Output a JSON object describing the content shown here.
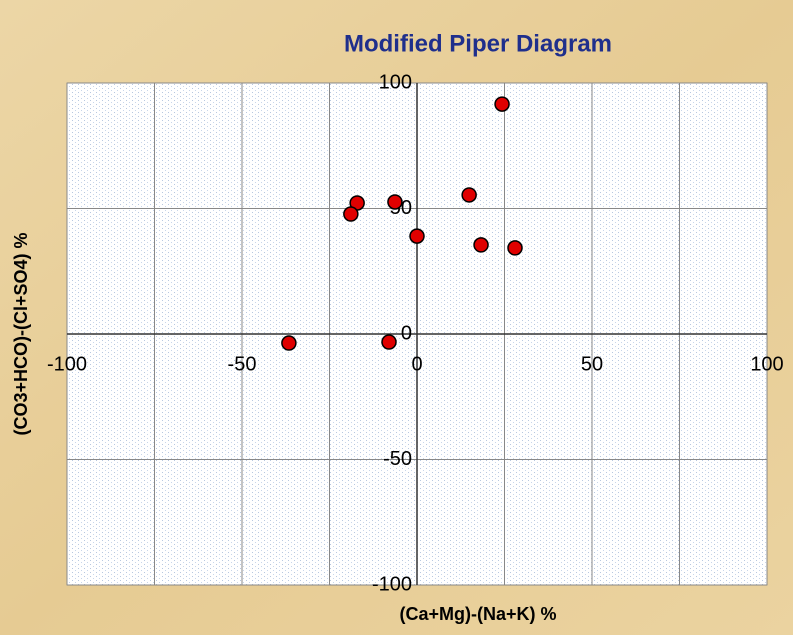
{
  "chart_data": {
    "type": "scatter",
    "title": "Modified Piper Diagram",
    "x_label": "(Ca+Mg)-(Na+K) %",
    "y_label": "(CO3+HCO)-(Cl+SO4) %",
    "x": [
      24.3,
      14.9,
      -6.3,
      -17.1,
      -18.9,
      0,
      18.3,
      28,
      -36.6,
      -8
    ],
    "y": [
      91.6,
      55.4,
      52.6,
      52.2,
      47.8,
      39,
      35.5,
      34.3,
      -3.6,
      -3.2
    ],
    "color": "#e00000",
    "xlim": [
      -100,
      100
    ],
    "xticks": [
      -100,
      -50,
      0,
      50,
      100
    ],
    "ylim": [
      -100,
      100
    ],
    "yticks": [
      -100,
      -50,
      0,
      50,
      100
    ],
    "grid": true
  }
}
